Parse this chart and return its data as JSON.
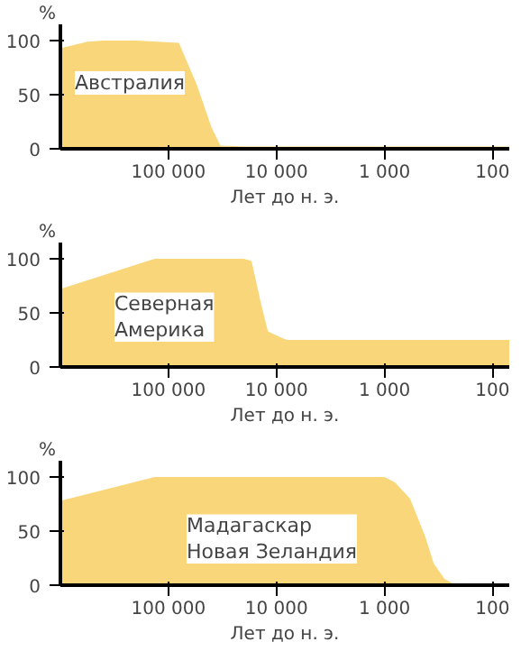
{
  "chart_data": [
    {
      "type": "area",
      "ylabel": "%",
      "xlabel": "Лет до н. э.",
      "annotations": [
        "Австралия"
      ],
      "log": "x",
      "x": [
        1000000,
        560000,
        400000,
        200000,
        80000,
        55000,
        40000,
        33000,
        20000,
        70
      ],
      "values": [
        93,
        99,
        100,
        100,
        98,
        60,
        20,
        3,
        2,
        2
      ],
      "color": "#fad67a",
      "xlim": [
        1000000,
        70
      ],
      "xticks": [
        {
          "value": 100000,
          "label": "100 000"
        },
        {
          "value": 10000,
          "label": "10 000"
        },
        {
          "value": 1000,
          "label": "1 000"
        },
        100
      ],
      "ylim": [
        0,
        115
      ],
      "yticks": [
        0,
        50,
        100
      ],
      "grid": false
    },
    {
      "type": "area",
      "ylabel": "%",
      "xlabel": "Лет до н. э.",
      "annotations": [
        "Северная\nАмерика"
      ],
      "log": "x",
      "x": [
        1000000,
        134000,
        20000,
        17000,
        14000,
        12000,
        9000,
        8000,
        70
      ],
      "values": [
        72,
        100,
        100,
        98,
        60,
        33,
        27,
        25,
        25
      ],
      "color": "#fad67a",
      "xlim": [
        1000000,
        70
      ],
      "xticks": [
        {
          "value": 100000,
          "label": "100 000"
        },
        {
          "value": 10000,
          "label": "10 000"
        },
        {
          "value": 1000,
          "label": "1 000"
        },
        100
      ],
      "ylim": [
        0,
        115
      ],
      "yticks": [
        0,
        50,
        100
      ],
      "grid": false
    },
    {
      "type": "area",
      "ylabel": "%",
      "xlabel": "Лет до н. э.",
      "annotations": [
        "Мадагаскар\nНовая Зеландия"
      ],
      "log": "x",
      "x": [
        1000000,
        134000,
        1000,
        800,
        580,
        420,
        350,
        280,
        220,
        70
      ],
      "values": [
        78,
        100,
        100,
        95,
        80,
        45,
        20,
        6,
        0,
        0
      ],
      "color": "#fad67a",
      "xlim": [
        1000000,
        70
      ],
      "xticks": [
        {
          "value": 100000,
          "label": "100 000"
        },
        {
          "value": 10000,
          "label": "10 000"
        },
        {
          "value": 1000,
          "label": "1 000"
        },
        100
      ],
      "ylim": [
        0,
        115
      ],
      "yticks": [
        0,
        50,
        100
      ],
      "grid": false
    }
  ]
}
